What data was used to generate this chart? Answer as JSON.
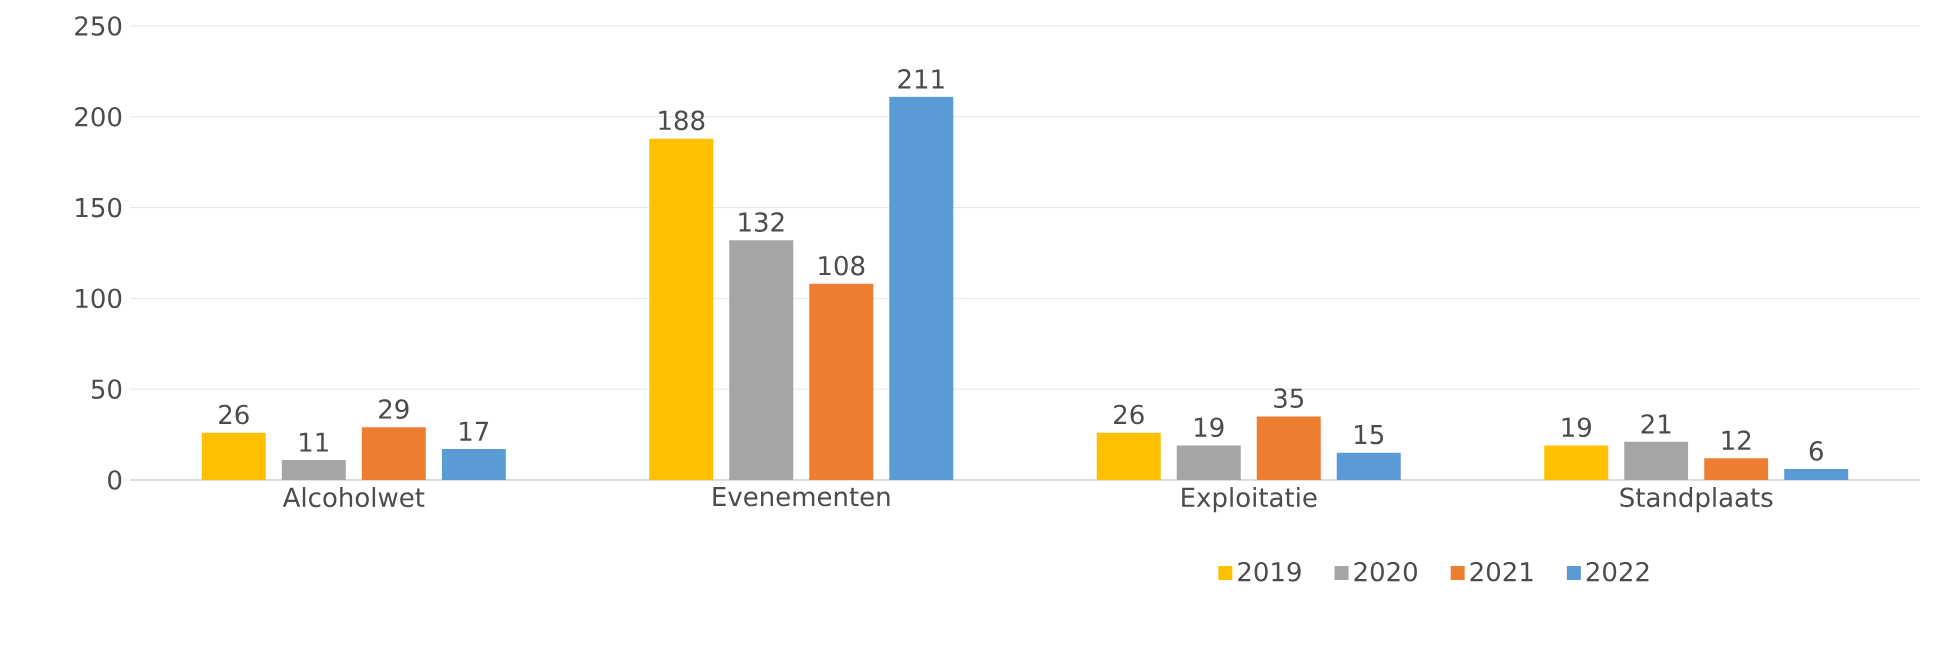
{
  "chart_data": {
    "type": "bar",
    "categories": [
      "Alcoholwet",
      "Evenementen",
      "Exploitatie",
      "Standplaats"
    ],
    "series": [
      {
        "name": "2019",
        "color": "#ffc000",
        "values": [
          26,
          188,
          26,
          19
        ]
      },
      {
        "name": "2020",
        "color": "#a5a5a5",
        "values": [
          11,
          132,
          19,
          21
        ]
      },
      {
        "name": "2021",
        "color": "#ed7d31",
        "values": [
          29,
          108,
          35,
          12
        ]
      },
      {
        "name": "2022",
        "color": "#5b9bd5",
        "values": [
          17,
          211,
          15,
          6
        ]
      }
    ],
    "ylim": [
      0,
      250
    ],
    "yticks": [
      0,
      50,
      100,
      150,
      200,
      250
    ],
    "grid": "y",
    "legend": "bottom",
    "data_labels": true
  }
}
